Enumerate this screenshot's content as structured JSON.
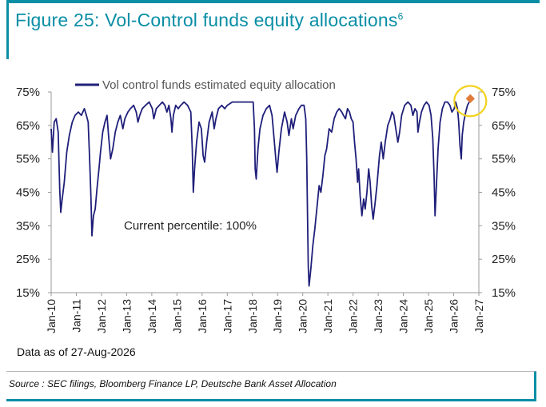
{
  "header": {
    "title": "Figure 25: Vol-Control funds equity allocations",
    "footnote_marker": "6"
  },
  "note": "Data as of 27-Aug-2026",
  "source": "Source : SEC filings, Bloomberg Finance LP, Deutsche Bank Asset Allocation",
  "colors": {
    "accent": "#0a8ea6",
    "series": "#1f1f7a",
    "marker": "#e07b39",
    "highlight": "#f2d21b"
  },
  "chart_data": {
    "type": "line",
    "title": "",
    "xlabel": "",
    "ylabel": "",
    "ylim": [
      15,
      75
    ],
    "xlim": [
      "Jan-10",
      "Jan-27"
    ],
    "y_tick_labels": [
      "75%",
      "65%",
      "55%",
      "45%",
      "35%",
      "25%",
      "15%"
    ],
    "x_tick_labels": [
      "Jan-10",
      "Jan-11",
      "Jan-12",
      "Jan-13",
      "Jan-14",
      "Jan-15",
      "Jan-16",
      "Jan-17",
      "Jan-18",
      "Jan-19",
      "Jan-20",
      "Jan-21",
      "Jan-22",
      "Jan-23",
      "Jan-24",
      "Jan-25",
      "Jan-26",
      "Jan-27"
    ],
    "legend_position": "top",
    "grid": false,
    "annotation": "Current percentile: 100%",
    "current_point": {
      "x": 2026.66,
      "y": 73,
      "marker": "diamond",
      "highlighted": true
    },
    "series": [
      {
        "name": "Vol control funds estimated equity allocation",
        "points": [
          [
            2010.0,
            64
          ],
          [
            2010.05,
            57
          ],
          [
            2010.12,
            66
          ],
          [
            2010.2,
            67
          ],
          [
            2010.28,
            63
          ],
          [
            2010.34,
            46
          ],
          [
            2010.38,
            39
          ],
          [
            2010.44,
            43
          ],
          [
            2010.52,
            48
          ],
          [
            2010.62,
            57
          ],
          [
            2010.72,
            62
          ],
          [
            2010.84,
            66
          ],
          [
            2010.95,
            68
          ],
          [
            2011.08,
            69
          ],
          [
            2011.2,
            68
          ],
          [
            2011.32,
            70
          ],
          [
            2011.4,
            68
          ],
          [
            2011.47,
            66
          ],
          [
            2011.53,
            55
          ],
          [
            2011.58,
            44
          ],
          [
            2011.62,
            32
          ],
          [
            2011.68,
            38
          ],
          [
            2011.75,
            40
          ],
          [
            2011.82,
            46
          ],
          [
            2011.9,
            52
          ],
          [
            2011.96,
            57
          ],
          [
            2012.05,
            63
          ],
          [
            2012.14,
            66
          ],
          [
            2012.22,
            68
          ],
          [
            2012.28,
            62
          ],
          [
            2012.36,
            55
          ],
          [
            2012.45,
            58
          ],
          [
            2012.55,
            63
          ],
          [
            2012.65,
            66
          ],
          [
            2012.75,
            68
          ],
          [
            2012.85,
            64
          ],
          [
            2012.93,
            67
          ],
          [
            2013.05,
            69
          ],
          [
            2013.15,
            70
          ],
          [
            2013.28,
            71
          ],
          [
            2013.38,
            69
          ],
          [
            2013.45,
            66
          ],
          [
            2013.52,
            68
          ],
          [
            2013.62,
            70
          ],
          [
            2013.75,
            71
          ],
          [
            2013.9,
            72
          ],
          [
            2014.02,
            70
          ],
          [
            2014.08,
            67
          ],
          [
            2014.18,
            70
          ],
          [
            2014.3,
            71
          ],
          [
            2014.42,
            72
          ],
          [
            2014.52,
            71
          ],
          [
            2014.6,
            69
          ],
          [
            2014.68,
            71
          ],
          [
            2014.76,
            67
          ],
          [
            2014.8,
            63
          ],
          [
            2014.86,
            68
          ],
          [
            2014.95,
            71
          ],
          [
            2015.05,
            70
          ],
          [
            2015.15,
            71
          ],
          [
            2015.28,
            72
          ],
          [
            2015.42,
            71
          ],
          [
            2015.55,
            69
          ],
          [
            2015.61,
            58
          ],
          [
            2015.65,
            45
          ],
          [
            2015.7,
            52
          ],
          [
            2015.78,
            60
          ],
          [
            2015.88,
            66
          ],
          [
            2015.97,
            64
          ],
          [
            2016.04,
            56
          ],
          [
            2016.1,
            54
          ],
          [
            2016.18,
            60
          ],
          [
            2016.28,
            66
          ],
          [
            2016.4,
            69
          ],
          [
            2016.48,
            64
          ],
          [
            2016.55,
            67
          ],
          [
            2016.65,
            70
          ],
          [
            2016.78,
            71
          ],
          [
            2016.9,
            70
          ],
          [
            2017.0,
            71
          ],
          [
            2017.2,
            72
          ],
          [
            2017.45,
            72
          ],
          [
            2017.7,
            72
          ],
          [
            2017.95,
            72
          ],
          [
            2018.03,
            72
          ],
          [
            2018.08,
            64
          ],
          [
            2018.11,
            52
          ],
          [
            2018.15,
            49
          ],
          [
            2018.22,
            58
          ],
          [
            2018.3,
            64
          ],
          [
            2018.42,
            68
          ],
          [
            2018.55,
            70
          ],
          [
            2018.68,
            71
          ],
          [
            2018.78,
            68
          ],
          [
            2018.85,
            62
          ],
          [
            2018.93,
            55
          ],
          [
            2018.98,
            51
          ],
          [
            2019.05,
            57
          ],
          [
            2019.15,
            64
          ],
          [
            2019.28,
            69
          ],
          [
            2019.38,
            66
          ],
          [
            2019.45,
            62
          ],
          [
            2019.55,
            67
          ],
          [
            2019.62,
            64
          ],
          [
            2019.72,
            68
          ],
          [
            2019.85,
            70
          ],
          [
            2019.95,
            71
          ],
          [
            2020.05,
            71
          ],
          [
            2020.12,
            67
          ],
          [
            2020.16,
            55
          ],
          [
            2020.19,
            38
          ],
          [
            2020.22,
            23
          ],
          [
            2020.25,
            17
          ],
          [
            2020.32,
            22
          ],
          [
            2020.4,
            29
          ],
          [
            2020.48,
            34
          ],
          [
            2020.56,
            40
          ],
          [
            2020.65,
            47
          ],
          [
            2020.72,
            45
          ],
          [
            2020.8,
            50
          ],
          [
            2020.88,
            56
          ],
          [
            2020.95,
            58
          ],
          [
            2021.05,
            64
          ],
          [
            2021.15,
            63
          ],
          [
            2021.25,
            67
          ],
          [
            2021.35,
            69
          ],
          [
            2021.45,
            70
          ],
          [
            2021.55,
            69
          ],
          [
            2021.62,
            68
          ],
          [
            2021.7,
            67
          ],
          [
            2021.78,
            70
          ],
          [
            2021.86,
            69
          ],
          [
            2021.93,
            67
          ],
          [
            2022.0,
            66
          ],
          [
            2022.06,
            60
          ],
          [
            2022.12,
            55
          ],
          [
            2022.18,
            48
          ],
          [
            2022.22,
            52
          ],
          [
            2022.28,
            44
          ],
          [
            2022.35,
            38
          ],
          [
            2022.42,
            43
          ],
          [
            2022.48,
            40
          ],
          [
            2022.55,
            45
          ],
          [
            2022.62,
            52
          ],
          [
            2022.68,
            48
          ],
          [
            2022.74,
            41
          ],
          [
            2022.8,
            37
          ],
          [
            2022.88,
            42
          ],
          [
            2022.95,
            47
          ],
          [
            2023.05,
            56
          ],
          [
            2023.12,
            60
          ],
          [
            2023.2,
            55
          ],
          [
            2023.28,
            60
          ],
          [
            2023.38,
            65
          ],
          [
            2023.48,
            67
          ],
          [
            2023.55,
            69
          ],
          [
            2023.62,
            68
          ],
          [
            2023.7,
            64
          ],
          [
            2023.78,
            60
          ],
          [
            2023.85,
            63
          ],
          [
            2023.93,
            68
          ],
          [
            2024.05,
            71
          ],
          [
            2024.18,
            72
          ],
          [
            2024.3,
            71
          ],
          [
            2024.38,
            68
          ],
          [
            2024.46,
            70
          ],
          [
            2024.54,
            69
          ],
          [
            2024.58,
            63
          ],
          [
            2024.64,
            66
          ],
          [
            2024.72,
            69
          ],
          [
            2024.82,
            71
          ],
          [
            2024.92,
            72
          ],
          [
            2025.02,
            71
          ],
          [
            2025.1,
            68
          ],
          [
            2025.17,
            61
          ],
          [
            2025.22,
            50
          ],
          [
            2025.26,
            38
          ],
          [
            2025.32,
            48
          ],
          [
            2025.38,
            58
          ],
          [
            2025.46,
            66
          ],
          [
            2025.55,
            70
          ],
          [
            2025.65,
            72
          ],
          [
            2025.75,
            72
          ],
          [
            2025.85,
            71
          ],
          [
            2025.93,
            69
          ],
          [
            2026.02,
            70
          ],
          [
            2026.08,
            72
          ],
          [
            2026.15,
            70
          ],
          [
            2026.2,
            66
          ],
          [
            2026.25,
            59
          ],
          [
            2026.3,
            55
          ],
          [
            2026.34,
            62
          ],
          [
            2026.4,
            66
          ],
          [
            2026.48,
            69
          ],
          [
            2026.55,
            71
          ],
          [
            2026.62,
            72
          ]
        ]
      }
    ]
  }
}
